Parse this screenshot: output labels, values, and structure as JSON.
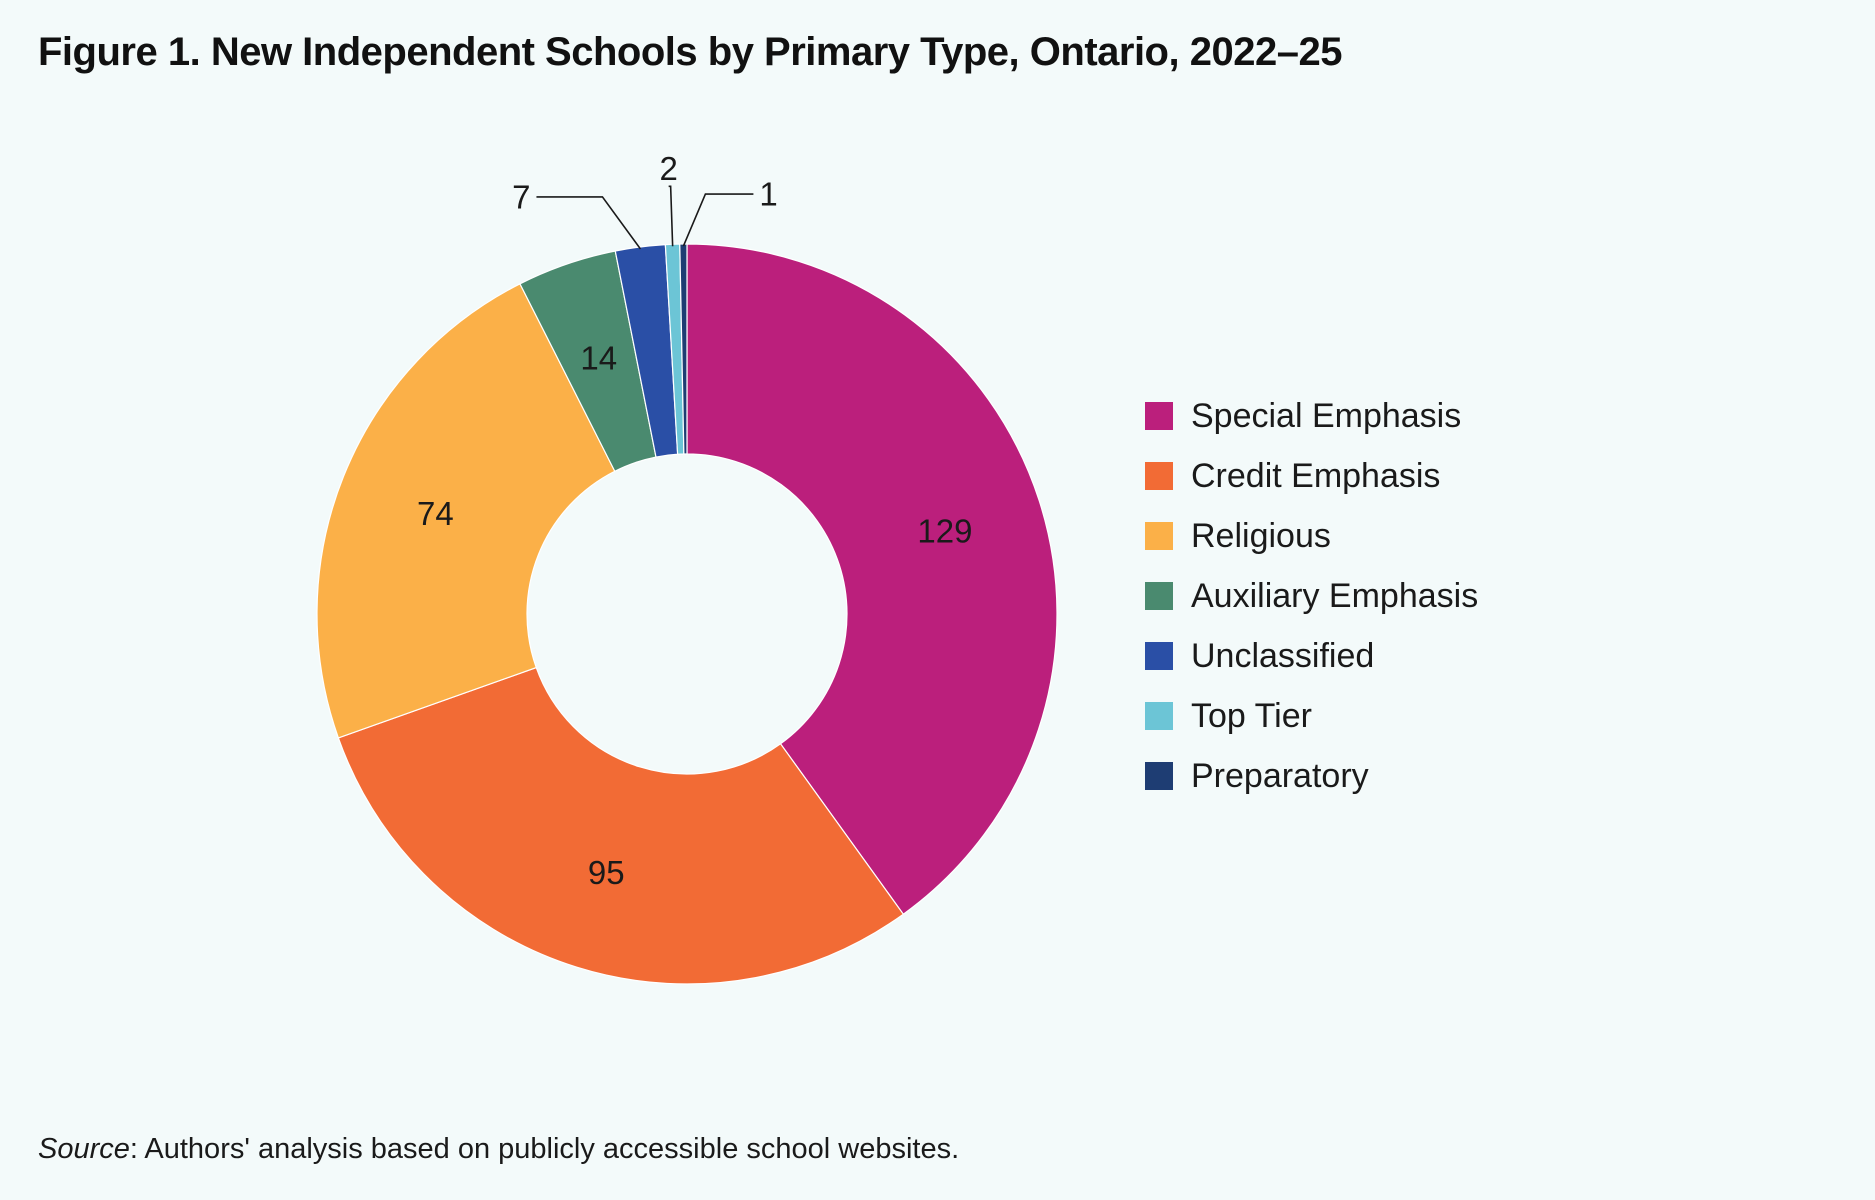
{
  "title": "Figure 1. New Independent Schools by Primary Type, Ontario, 2022–25",
  "source": {
    "label": "Source",
    "text": ": Authors' analysis based on publicly accessible school websites."
  },
  "chart_data": {
    "type": "pie",
    "variant": "donut",
    "title": "Figure 1. New Independent Schools by Primary Type, Ontario, 2022–25",
    "legend_position": "right",
    "direction": "clockwise-from-top",
    "categories": [
      "Special Emphasis",
      "Credit Emphasis",
      "Religious",
      "Auxiliary Emphasis",
      "Unclassified",
      "Top Tier",
      "Preparatory"
    ],
    "values": [
      129,
      95,
      74,
      14,
      7,
      2,
      1
    ],
    "colors": [
      "#bb1f7c",
      "#f26b35",
      "#fbb048",
      "#4a8a6f",
      "#2a4fa6",
      "#6cc5d6",
      "#1e3d73"
    ]
  }
}
